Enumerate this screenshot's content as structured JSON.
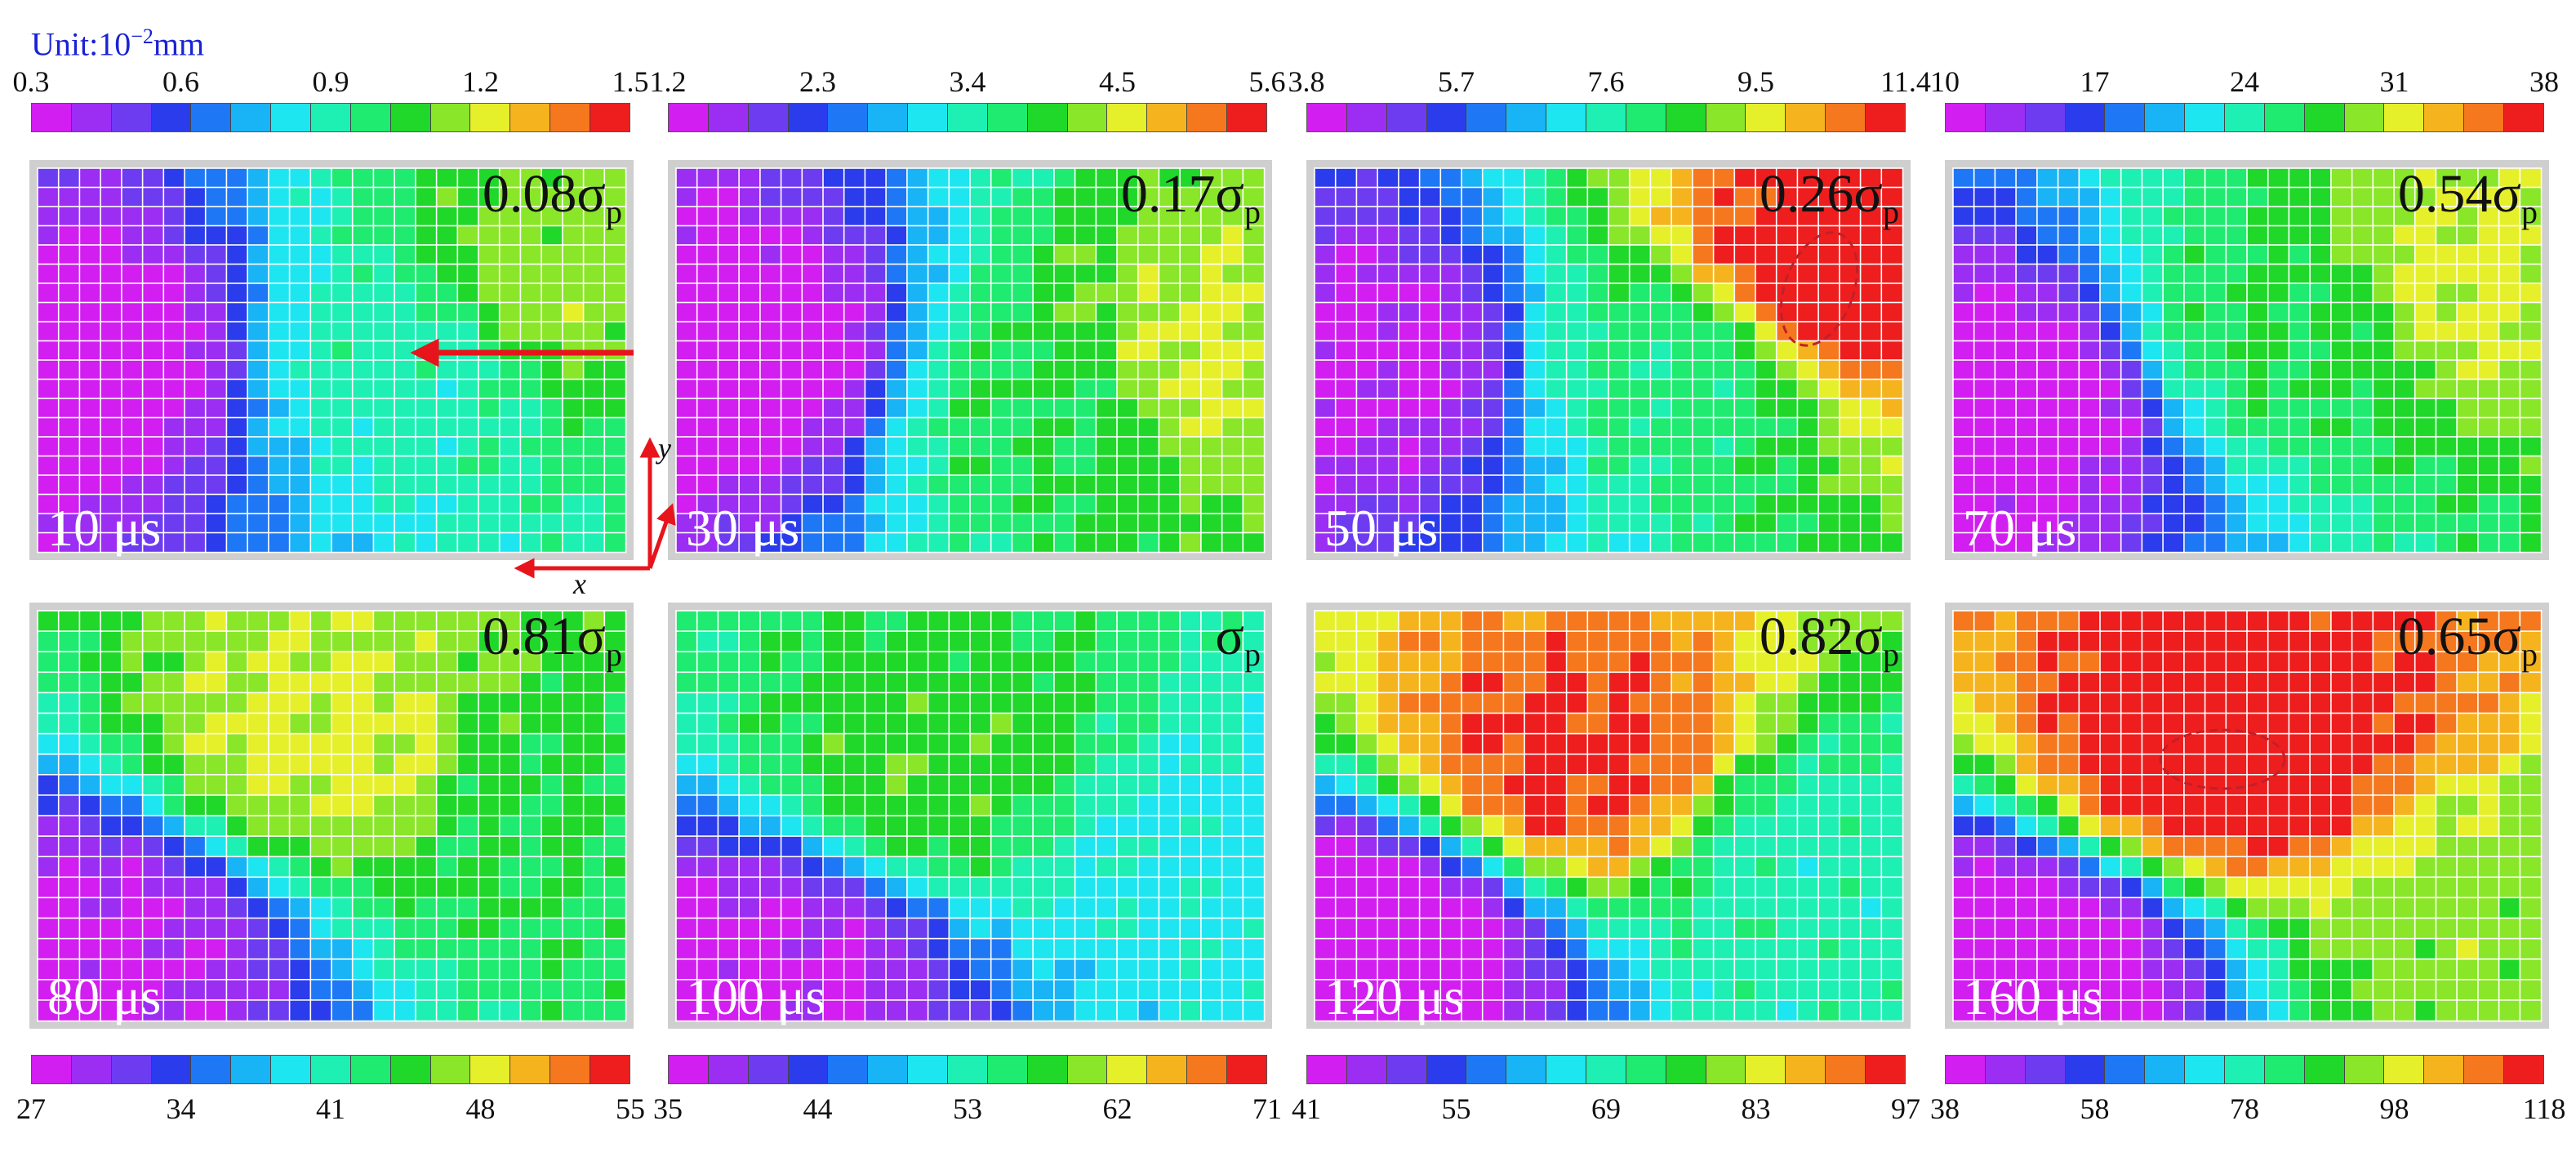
{
  "unit_label": {
    "prefix": "Unit:10",
    "sup": "−2",
    "suffix": "mm"
  },
  "colormap": [
    "#d21ef0",
    "#9b2ef2",
    "#6e3cf0",
    "#2a3ceb",
    "#1e78f5",
    "#18b4f5",
    "#1ee6f0",
    "#1ef0b4",
    "#1eeb70",
    "#20d82a",
    "#8ae628",
    "#e6f02a",
    "#f5b41e",
    "#f5781e",
    "#ee1e1e"
  ],
  "top_colorbars": [
    {
      "name": "cb-10us",
      "ticks": [
        "0.3",
        "0.6",
        "0.9",
        "1.2",
        "1.5"
      ]
    },
    {
      "name": "cb-30us",
      "ticks": [
        "1.2",
        "2.3",
        "3.4",
        "4.5",
        "5.6"
      ]
    },
    {
      "name": "cb-50us",
      "ticks": [
        "3.8",
        "5.7",
        "7.6",
        "9.5",
        "11.4"
      ]
    },
    {
      "name": "cb-70us",
      "ticks": [
        "10",
        "17",
        "24",
        "31",
        "38"
      ]
    }
  ],
  "bottom_colorbars": [
    {
      "name": "cb-80us",
      "ticks": [
        "27",
        "34",
        "41",
        "48",
        "55"
      ]
    },
    {
      "name": "cb-100us",
      "ticks": [
        "35",
        "44",
        "53",
        "62",
        "71"
      ]
    },
    {
      "name": "cb-120us",
      "ticks": [
        "41",
        "55",
        "69",
        "83",
        "97"
      ]
    },
    {
      "name": "cb-160us",
      "ticks": [
        "38",
        "58",
        "78",
        "98",
        "118"
      ]
    }
  ],
  "panels": [
    {
      "time": "10 μs",
      "ratio_prefix": "0.08σ",
      "ratio_sub": "p"
    },
    {
      "time": "30 μs",
      "ratio_prefix": "0.17σ",
      "ratio_sub": "p"
    },
    {
      "time": "50 μs",
      "ratio_prefix": "0.26σ",
      "ratio_sub": "p"
    },
    {
      "time": "70 μs",
      "ratio_prefix": "0.54σ",
      "ratio_sub": "p"
    },
    {
      "time": "80 μs",
      "ratio_prefix": "0.81σ",
      "ratio_sub": "p"
    },
    {
      "time": "100 μs",
      "ratio_prefix": "σ",
      "ratio_sub": "p"
    },
    {
      "time": "120 μs",
      "ratio_prefix": "0.82σ",
      "ratio_sub": "p"
    },
    {
      "time": "160 μs",
      "ratio_prefix": "0.65σ",
      "ratio_sub": "p"
    }
  ],
  "axes": {
    "x": "x",
    "y": "y"
  }
}
